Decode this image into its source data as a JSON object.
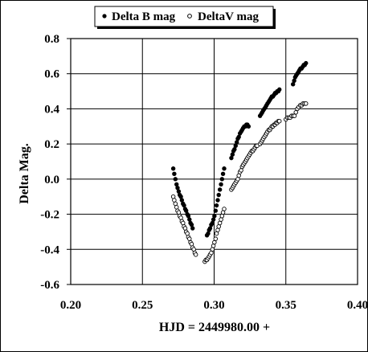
{
  "chart_data": {
    "type": "scatter",
    "xlabel": "HJD = 2449980.00 +",
    "ylabel": "Delta Mag.",
    "xlim": [
      0.2,
      0.4
    ],
    "ylim": [
      -0.6,
      0.8
    ],
    "xticks": [
      "0.20",
      "0.25",
      "0.30",
      "0.35",
      "0.40"
    ],
    "yticks": [
      "-0.6",
      "-0.4",
      "-0.2",
      "0.0",
      "0.2",
      "0.4",
      "0.6",
      "0.8"
    ],
    "grid": true,
    "legend_position": "top",
    "series": [
      {
        "name": "Delta B mag",
        "marker": "filled-circle",
        "color": "#000000",
        "x": [
          0.2715,
          0.2722,
          0.273,
          0.2738,
          0.2745,
          0.2753,
          0.276,
          0.2768,
          0.2775,
          0.2783,
          0.279,
          0.2798,
          0.2805,
          0.2813,
          0.282,
          0.2828,
          0.2835,
          0.2843,
          0.285,
          0.295,
          0.2958,
          0.2965,
          0.2972,
          0.298,
          0.2988,
          0.2995,
          0.3002,
          0.301,
          0.3017,
          0.3025,
          0.3032,
          0.304,
          0.3048,
          0.3055,
          0.3062,
          0.307,
          0.312,
          0.3128,
          0.3135,
          0.3142,
          0.315,
          0.3158,
          0.3165,
          0.3172,
          0.318,
          0.3188,
          0.3195,
          0.3202,
          0.321,
          0.3218,
          0.3225,
          0.3232,
          0.324,
          0.332,
          0.3328,
          0.3335,
          0.3342,
          0.335,
          0.3358,
          0.3365,
          0.3372,
          0.338,
          0.3388,
          0.3395,
          0.3402,
          0.341,
          0.3418,
          0.3425,
          0.3432,
          0.344,
          0.3448,
          0.3455,
          0.355,
          0.3558,
          0.3565,
          0.3572,
          0.358,
          0.3588,
          0.3595,
          0.3602,
          0.361,
          0.3618,
          0.3625,
          0.3632,
          0.364
        ],
        "y": [
          0.06,
          0.03,
          0.0,
          -0.03,
          -0.05,
          -0.07,
          -0.09,
          -0.1,
          -0.12,
          -0.14,
          -0.15,
          -0.17,
          -0.18,
          -0.2,
          -0.21,
          -0.23,
          -0.25,
          -0.26,
          -0.28,
          -0.32,
          -0.31,
          -0.29,
          -0.28,
          -0.26,
          -0.25,
          -0.23,
          -0.21,
          -0.18,
          -0.15,
          -0.12,
          -0.09,
          -0.06,
          -0.03,
          0.0,
          0.03,
          0.06,
          0.12,
          0.14,
          0.16,
          0.17,
          0.19,
          0.21,
          0.23,
          0.24,
          0.26,
          0.27,
          0.28,
          0.29,
          0.3,
          0.3,
          0.31,
          0.31,
          0.3,
          0.36,
          0.37,
          0.38,
          0.39,
          0.4,
          0.41,
          0.42,
          0.43,
          0.44,
          0.45,
          0.46,
          0.47,
          0.47,
          0.48,
          0.49,
          0.49,
          0.5,
          0.5,
          0.51,
          0.54,
          0.56,
          0.58,
          0.59,
          0.6,
          0.61,
          0.62,
          0.63,
          0.63,
          0.64,
          0.65,
          0.65,
          0.66
        ]
      },
      {
        "name": "DeltaV mag",
        "marker": "open-circle",
        "color": "#000000",
        "x": [
          0.2715,
          0.2722,
          0.273,
          0.2738,
          0.2745,
          0.2753,
          0.276,
          0.2768,
          0.2775,
          0.2783,
          0.279,
          0.2798,
          0.2805,
          0.2813,
          0.282,
          0.2828,
          0.2835,
          0.2843,
          0.285,
          0.2858,
          0.2865,
          0.2872,
          0.2935,
          0.2942,
          0.295,
          0.2958,
          0.2965,
          0.2972,
          0.298,
          0.2988,
          0.2995,
          0.3002,
          0.301,
          0.3017,
          0.3025,
          0.3032,
          0.304,
          0.3048,
          0.3055,
          0.3062,
          0.307,
          0.312,
          0.3128,
          0.3135,
          0.3142,
          0.315,
          0.3158,
          0.3165,
          0.3172,
          0.318,
          0.3188,
          0.3195,
          0.3202,
          0.321,
          0.3218,
          0.3225,
          0.3232,
          0.324,
          0.3248,
          0.3255,
          0.3262,
          0.327,
          0.3278,
          0.3285,
          0.3292,
          0.33,
          0.332,
          0.3328,
          0.3335,
          0.3342,
          0.335,
          0.3358,
          0.3365,
          0.3372,
          0.338,
          0.3388,
          0.3395,
          0.3402,
          0.341,
          0.3418,
          0.3425,
          0.3432,
          0.344,
          0.3448,
          0.3455,
          0.35,
          0.351,
          0.352,
          0.353,
          0.354,
          0.355,
          0.356,
          0.357,
          0.358,
          0.359,
          0.36,
          0.361,
          0.362,
          0.363,
          0.364
        ],
        "y": [
          -0.1,
          -0.12,
          -0.14,
          -0.16,
          -0.18,
          -0.19,
          -0.21,
          -0.22,
          -0.24,
          -0.25,
          -0.27,
          -0.28,
          -0.3,
          -0.31,
          -0.33,
          -0.34,
          -0.36,
          -0.37,
          -0.39,
          -0.4,
          -0.42,
          -0.43,
          -0.47,
          -0.46,
          -0.46,
          -0.45,
          -0.44,
          -0.43,
          -0.42,
          -0.4,
          -0.38,
          -0.36,
          -0.34,
          -0.31,
          -0.29,
          -0.27,
          -0.25,
          -0.23,
          -0.21,
          -0.19,
          -0.17,
          -0.06,
          -0.05,
          -0.04,
          -0.03,
          -0.02,
          -0.01,
          0.0,
          0.02,
          0.04,
          0.05,
          0.07,
          0.08,
          0.09,
          0.1,
          0.11,
          0.12,
          0.13,
          0.14,
          0.15,
          0.16,
          0.16,
          0.17,
          0.18,
          0.19,
          0.19,
          0.2,
          0.21,
          0.22,
          0.23,
          0.24,
          0.25,
          0.26,
          0.27,
          0.28,
          0.28,
          0.29,
          0.3,
          0.3,
          0.31,
          0.31,
          0.32,
          0.32,
          0.33,
          0.33,
          0.34,
          0.35,
          0.35,
          0.35,
          0.36,
          0.36,
          0.36,
          0.38,
          0.4,
          0.41,
          0.42,
          0.42,
          0.43,
          0.43,
          0.43
        ]
      }
    ]
  }
}
